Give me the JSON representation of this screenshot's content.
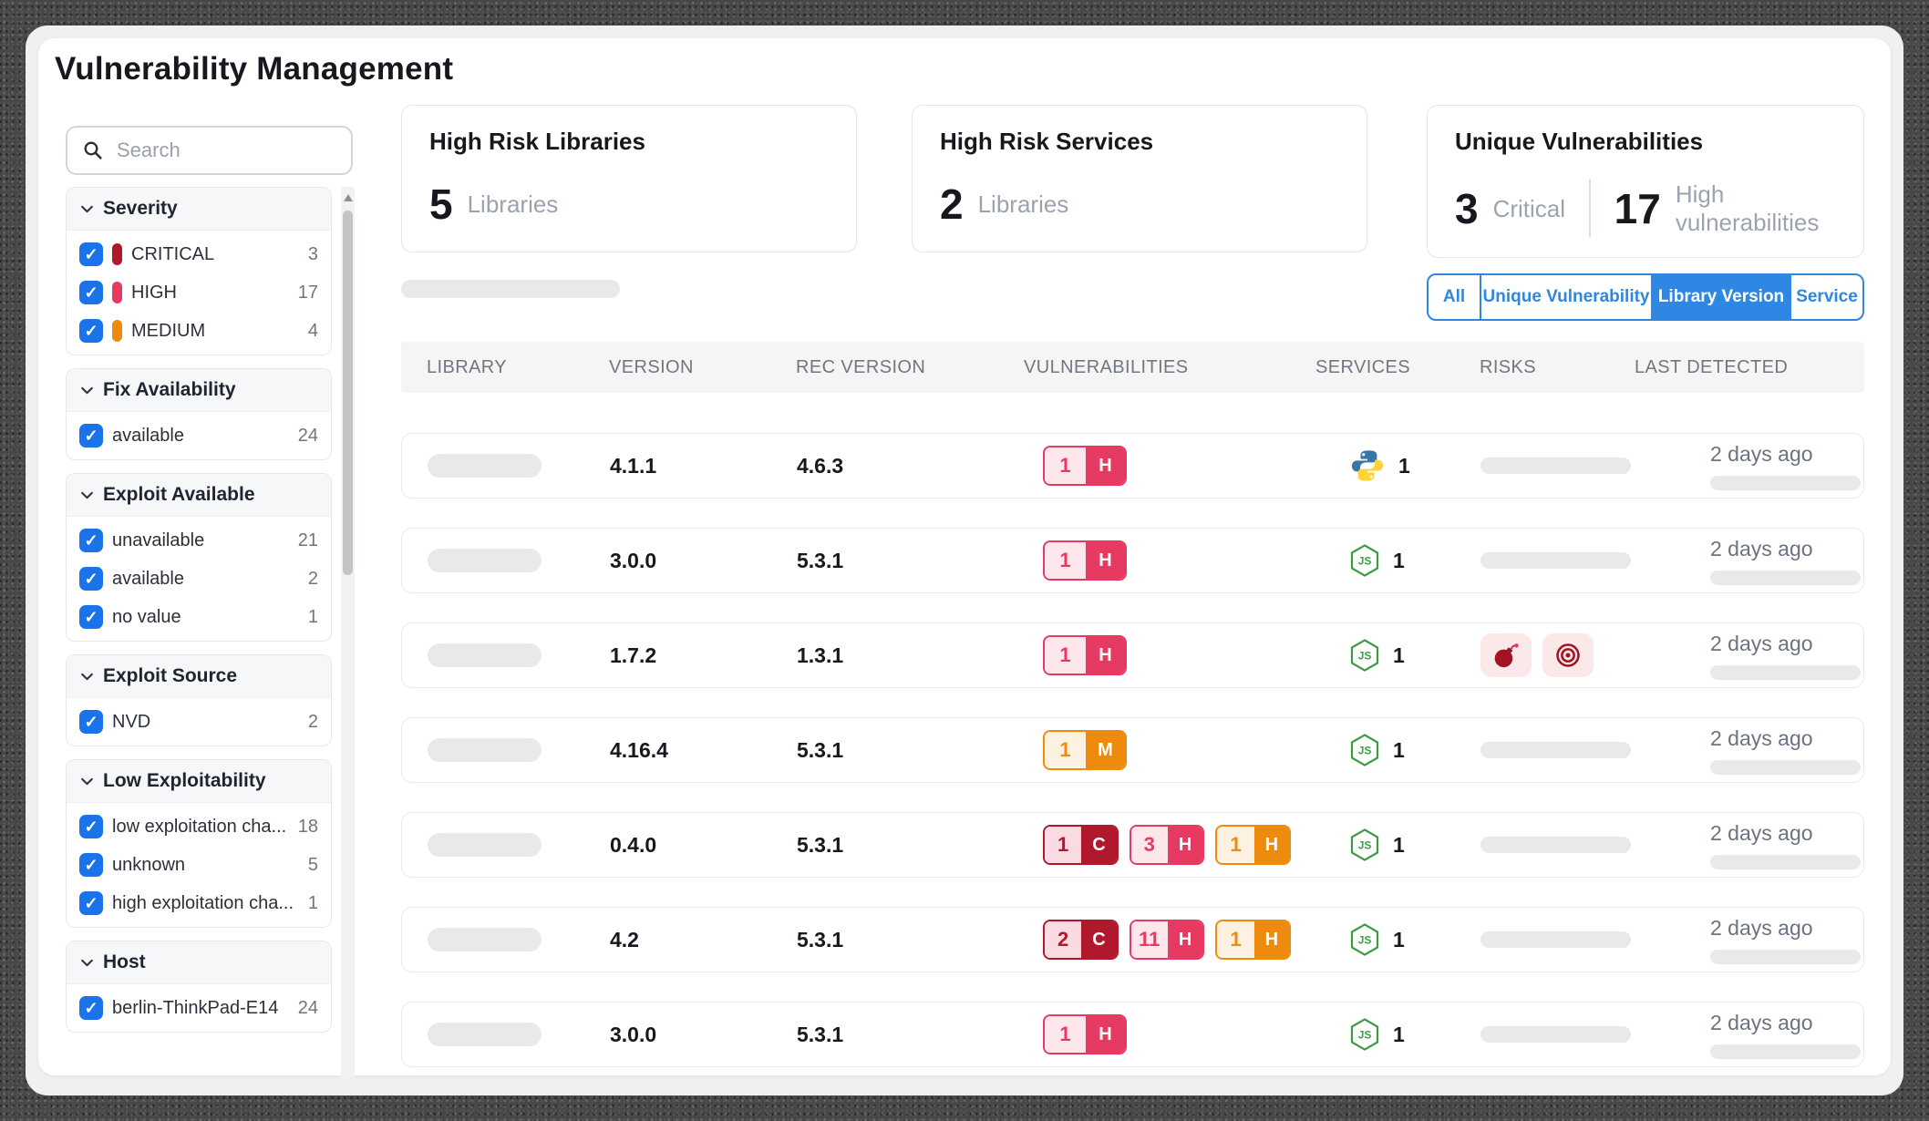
{
  "app": {
    "title": "Vulnerability Management"
  },
  "colors": {
    "accent_blue": "#2e87e2",
    "checkbox_blue": "#1a73e8",
    "critical": "#b0182c",
    "high": "#e73a62",
    "medium": "#ee8b0e",
    "node_green": "#3d9b44",
    "python_blue": "#3776ab",
    "python_yellow": "#ffd43b"
  },
  "sidebar": {
    "search_placeholder": "Search",
    "sections": [
      {
        "title": "Severity",
        "items": [
          {
            "label": "CRITICAL",
            "count": "3",
            "pill": "#b0182c"
          },
          {
            "label": "HIGH",
            "count": "17",
            "pill": "#e73a62"
          },
          {
            "label": "MEDIUM",
            "count": "4",
            "pill": "#ee8b0e"
          }
        ]
      },
      {
        "title": "Fix Availability",
        "items": [
          {
            "label": "available",
            "count": "24"
          }
        ]
      },
      {
        "title": "Exploit Available",
        "items": [
          {
            "label": "unavailable",
            "count": "21"
          },
          {
            "label": "available",
            "count": "2"
          },
          {
            "label": "no value",
            "count": "1"
          }
        ]
      },
      {
        "title": "Exploit Source",
        "items": [
          {
            "label": "NVD",
            "count": "2"
          }
        ]
      },
      {
        "title": "Low Exploitability",
        "items": [
          {
            "label": "low exploitation cha...",
            "count": "18"
          },
          {
            "label": "unknown",
            "count": "5"
          },
          {
            "label": "high exploitation cha...",
            "count": "1"
          }
        ]
      },
      {
        "title": "Host",
        "items": [
          {
            "label": "berlin-ThinkPad-E14",
            "count": "24"
          }
        ]
      }
    ]
  },
  "cards": [
    {
      "title": "High Risk Libraries",
      "value": "5",
      "unit": "Libraries"
    },
    {
      "title": "High Risk Services",
      "value": "2",
      "unit": "Libraries"
    },
    {
      "title": "Unique Vulnerabilities",
      "stats": [
        {
          "value": "3",
          "unit": "Critical"
        },
        {
          "value": "17",
          "unit": "High vulnerabilities"
        }
      ]
    }
  ],
  "tabs": [
    {
      "label": "All",
      "active": false
    },
    {
      "label": "Unique Vulnerability",
      "active": false
    },
    {
      "label": "Library Version",
      "active": true
    },
    {
      "label": "Service",
      "active": false
    }
  ],
  "table": {
    "headers": [
      "LIBRARY",
      "VERSION",
      "REC VERSION",
      "VULNERABILITIES",
      "SERVICES",
      "RISKS",
      "LAST DETECTED"
    ],
    "rows": [
      {
        "version": "4.1.1",
        "rec_version": "4.6.3",
        "vulns": [
          {
            "count": "1",
            "letter": "H",
            "severity": "high"
          }
        ],
        "service_icon": "python-icon",
        "service_count": "1",
        "risk_icons": [],
        "last_detected": "2 days ago"
      },
      {
        "version": "3.0.0",
        "rec_version": "5.3.1",
        "vulns": [
          {
            "count": "1",
            "letter": "H",
            "severity": "high"
          }
        ],
        "service_icon": "nodejs-icon",
        "service_count": "1",
        "risk_icons": [],
        "last_detected": "2 days ago"
      },
      {
        "version": "1.7.2",
        "rec_version": "1.3.1",
        "vulns": [
          {
            "count": "1",
            "letter": "H",
            "severity": "high"
          }
        ],
        "service_icon": "nodejs-icon",
        "service_count": "1",
        "risk_icons": [
          "bomb-icon",
          "target-icon"
        ],
        "last_detected": "2 days ago"
      },
      {
        "version": "4.16.4",
        "rec_version": "5.3.1",
        "vulns": [
          {
            "count": "1",
            "letter": "M",
            "severity": "medium"
          }
        ],
        "service_icon": "nodejs-icon",
        "service_count": "1",
        "risk_icons": [],
        "last_detected": "2 days ago"
      },
      {
        "version": "0.4.0",
        "rec_version": "5.3.1",
        "vulns": [
          {
            "count": "1",
            "letter": "C",
            "severity": "critical"
          },
          {
            "count": "3",
            "letter": "H",
            "severity": "high"
          },
          {
            "count": "1",
            "letter": "H",
            "severity": "medium"
          }
        ],
        "service_icon": "nodejs-icon",
        "service_count": "1",
        "risk_icons": [],
        "last_detected": "2 days ago"
      },
      {
        "version": "4.2",
        "rec_version": "5.3.1",
        "vulns": [
          {
            "count": "2",
            "letter": "C",
            "severity": "critical"
          },
          {
            "count": "11",
            "letter": "H",
            "severity": "high"
          },
          {
            "count": "1",
            "letter": "H",
            "severity": "medium"
          }
        ],
        "service_icon": "nodejs-icon",
        "service_count": "1",
        "risk_icons": [],
        "last_detected": "2 days ago"
      },
      {
        "version": "3.0.0",
        "rec_version": "5.3.1",
        "vulns": [
          {
            "count": "1",
            "letter": "H",
            "severity": "high"
          }
        ],
        "service_icon": "nodejs-icon",
        "service_count": "1",
        "risk_icons": [],
        "last_detected": "2 days ago"
      }
    ]
  }
}
